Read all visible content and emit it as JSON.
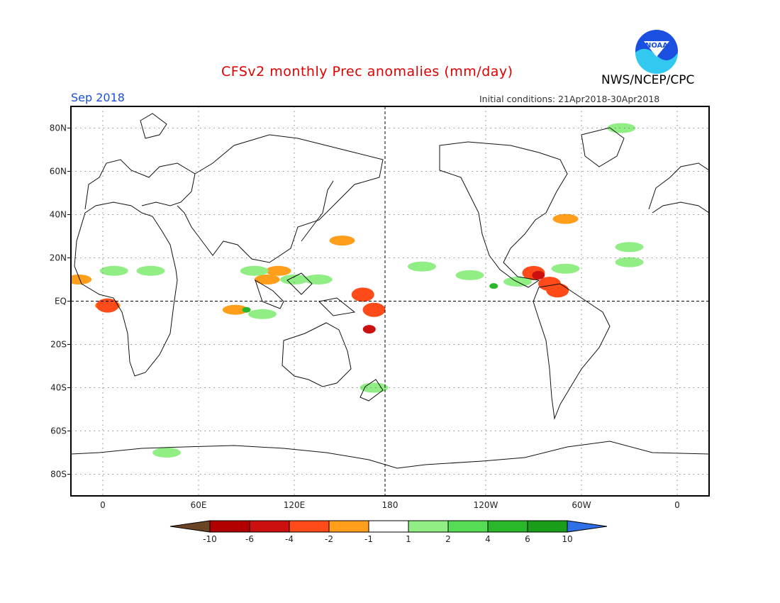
{
  "header": {
    "title": "CFSv2 monthly Prec anomalies (mm/day)",
    "agency": "NWS/NCEP/CPC",
    "month": "Sep 2018",
    "initial_conditions": "Initial conditions: 21Apr2018-30Apr2018"
  },
  "logo": {
    "text": "NOAA"
  },
  "map": {
    "lat_labels": [
      "80N",
      "60N",
      "40N",
      "20N",
      "EQ",
      "20S",
      "40S",
      "60S",
      "80S"
    ],
    "lat_values": [
      80,
      60,
      40,
      20,
      0,
      -20,
      -40,
      -60,
      -80
    ],
    "lon_labels": [
      "0",
      "60E",
      "120E",
      "180",
      "120W",
      "60W",
      "0"
    ],
    "lon_values": [
      0,
      60,
      120,
      180,
      240,
      300,
      360
    ],
    "lon_range": [
      -20,
      380
    ],
    "lat_range": [
      -90,
      90
    ]
  },
  "colorbar": {
    "labels": [
      "-10",
      "-6",
      "-4",
      "-2",
      "-1",
      "1",
      "2",
      "4",
      "6",
      "10"
    ],
    "colors": [
      "#6b4423",
      "#b20000",
      "#cc1010",
      "#ff4a1a",
      "#ff9e1a",
      "#ffffff",
      "#90ee84",
      "#55dd55",
      "#29b829",
      "#1a9e1a",
      "#2f6fe8"
    ]
  },
  "anomalies": {
    "orange": [
      [
        -15,
        10
      ],
      [
        3,
        -2
      ],
      [
        103,
        10
      ],
      [
        83,
        -4
      ],
      [
        150,
        28
      ],
      [
        110,
        14
      ],
      [
        -70,
        38
      ]
    ],
    "red": [
      [
        170,
        -4
      ],
      [
        163,
        3
      ],
      [
        -90,
        13
      ],
      [
        -75,
        5
      ],
      [
        3,
        -2
      ],
      [
        -80,
        8
      ]
    ],
    "darkred": [
      [
        167,
        -13
      ],
      [
        -87,
        12
      ]
    ],
    "green": [
      [
        7,
        14
      ],
      [
        30,
        14
      ],
      [
        95,
        14
      ],
      [
        120,
        10
      ],
      [
        135,
        10
      ],
      [
        -160,
        16
      ],
      [
        -130,
        12
      ],
      [
        -100,
        9
      ],
      [
        -30,
        25
      ],
      [
        -30,
        18
      ],
      [
        -35,
        80
      ],
      [
        40,
        -70
      ],
      [
        -70,
        15
      ],
      [
        170,
        -40
      ],
      [
        100,
        -6
      ]
    ],
    "darkgreen": [
      [
        -115,
        7
      ],
      [
        90,
        -4
      ]
    ]
  }
}
